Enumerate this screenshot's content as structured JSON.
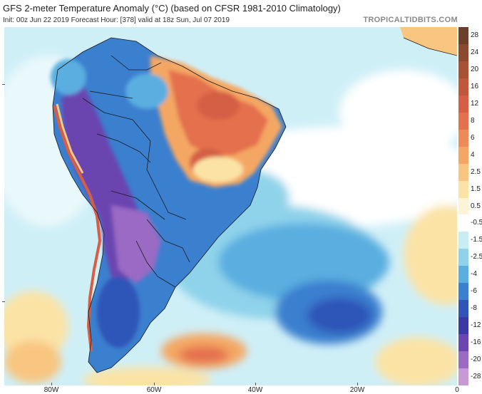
{
  "header": {
    "title": "GFS 2-meter Temperature Anomaly (°C) (based on CFSR 1981-2010 Climatology)",
    "info": "Init: 00z Jun 22 2019   Forecast Hour: [378]   valid at 18z Sun, Jul 07 2019",
    "brand": "TROPICALTIDBITS.COM"
  },
  "colorbar": {
    "labels": [
      "28",
      "24",
      "20",
      "16",
      "12",
      "8",
      "6",
      "4",
      "2.5",
      "1.5",
      "0.5",
      "-0.5",
      "-1.5",
      "-2.5",
      "-4",
      "-6",
      "-8",
      "-12",
      "-16",
      "-20",
      "-28"
    ],
    "colors": [
      "#6b3f2a",
      "#8b4a2f",
      "#a85234",
      "#c0563a",
      "#d55e45",
      "#e4704e",
      "#ee8a57",
      "#f4a764",
      "#f8c680",
      "#fbe3a6",
      "#fdf4d8",
      "#ffffff",
      "#c8edf3",
      "#8fd3ea",
      "#5aaee0",
      "#3b7fcf",
      "#2f55b8",
      "#3b3aa4",
      "#6b45b0",
      "#9a6ac4",
      "#c79ad6"
    ]
  },
  "xaxis": {
    "labels": [
      "80W",
      "60W",
      "40W",
      "20W",
      "0"
    ]
  },
  "map": {
    "ocean_color": "#cfeff7",
    "land_features": [
      "south-america",
      "africa-coast"
    ]
  }
}
